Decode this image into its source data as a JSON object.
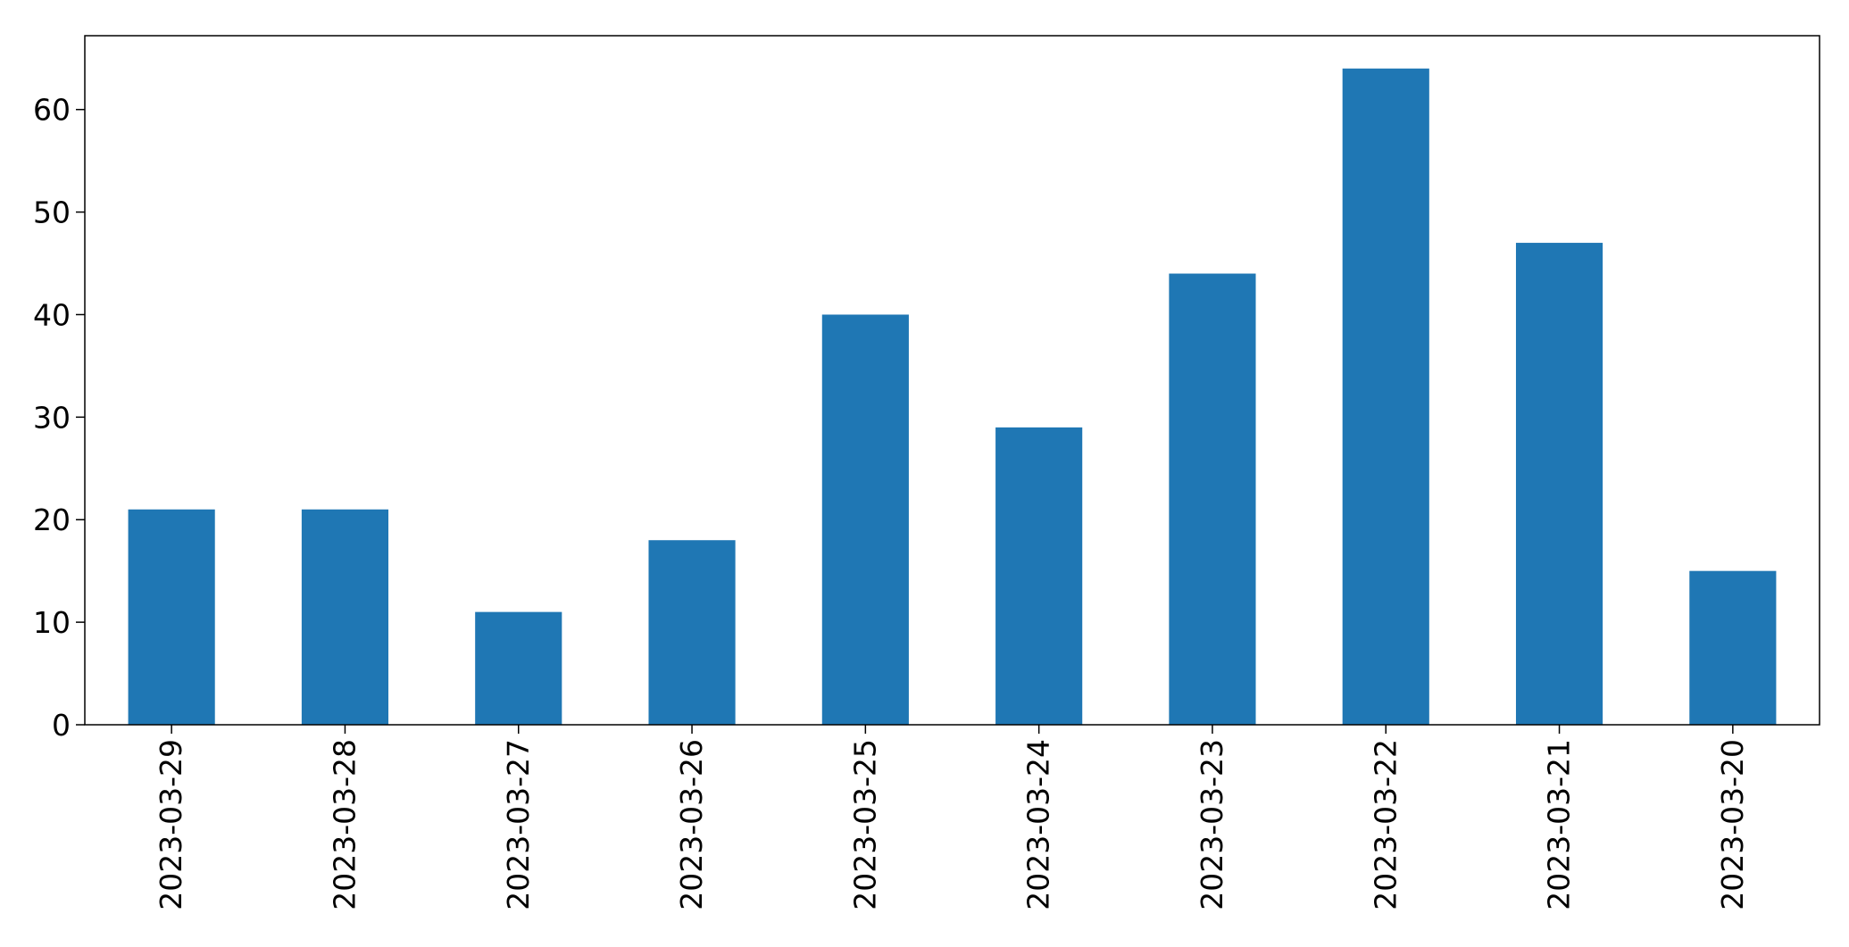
{
  "chart_data": {
    "type": "bar",
    "categories": [
      "2023-03-29",
      "2023-03-28",
      "2023-03-27",
      "2023-03-26",
      "2023-03-25",
      "2023-03-24",
      "2023-03-23",
      "2023-03-22",
      "2023-03-21",
      "2023-03-20"
    ],
    "values": [
      21,
      21,
      11,
      18,
      40,
      29,
      44,
      64,
      47,
      15
    ],
    "title": "",
    "xlabel": "",
    "ylabel": "",
    "ylim": [
      0,
      67.2
    ],
    "yticks": [
      0,
      10,
      20,
      30,
      40,
      50,
      60
    ],
    "grid": false,
    "legend": "none",
    "bar_color": "#1f77b4"
  }
}
